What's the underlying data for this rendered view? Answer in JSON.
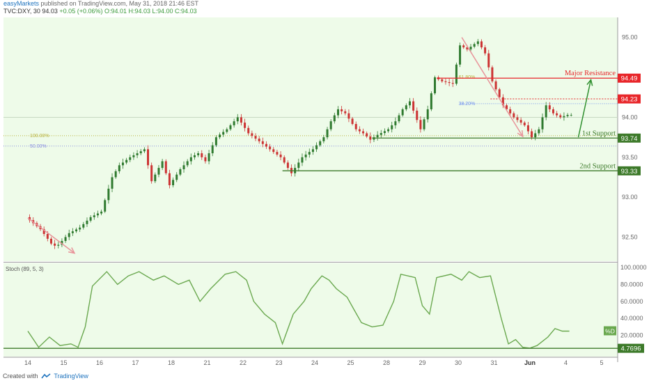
{
  "header": {
    "publisher": "easyMarkets",
    "published_text": "published on TradingView.com, May 31, 2018 21:46 EST",
    "symbol_line": "TVC:DXY, 30",
    "last_price": "94.03",
    "change": "+0.05 (+0.06%)",
    "ohlc": "O:94.01 H:94.03 L:94.00 C:94.03"
  },
  "footer": {
    "created_with": "Created with",
    "brand": "TradingView"
  },
  "colors": {
    "chart_bg": "#eefbe9",
    "resistance": "#e8262a",
    "support": "#3d7a2a",
    "fib_100": "#b9b23c",
    "fib_50": "#8a8fe0",
    "fib_382": "#6f8ff0",
    "down_arrow": "#e8949a",
    "up_arrow": "#2f8f2f",
    "stoch_line": "#6aa84f",
    "candle_up": "#2f7a2f",
    "candle_down": "#cc3333"
  },
  "chart_data": {
    "type": "line",
    "subtype": "candlestick",
    "price_axis": {
      "range": [
        92.2,
        95.25
      ],
      "ticks": [
        "95.00",
        "94.50",
        "94.00",
        "93.50",
        "93.00",
        "92.50"
      ],
      "tick_values": [
        95.0,
        94.5,
        94.0,
        93.5,
        93.0,
        92.5
      ]
    },
    "x_axis": {
      "labels": [
        "14",
        "15",
        "16",
        "17",
        "18",
        "21",
        "22",
        "23",
        "24",
        "25",
        "28",
        "29",
        "30",
        "31",
        "Jun",
        "4",
        "5"
      ],
      "bold": [
        "Jun"
      ]
    },
    "price_path": [
      [
        0,
        92.75
      ],
      [
        0.4,
        92.6
      ],
      [
        0.7,
        92.42
      ],
      [
        0.85,
        92.38
      ],
      [
        1.2,
        92.55
      ],
      [
        1.5,
        92.62
      ],
      [
        1.8,
        92.75
      ],
      [
        2.1,
        92.82
      ],
      [
        2.4,
        93.25
      ],
      [
        2.6,
        93.4
      ],
      [
        2.9,
        93.5
      ],
      [
        3.3,
        93.6
      ],
      [
        3.5,
        93.2
      ],
      [
        3.8,
        93.45
      ],
      [
        4.0,
        93.15
      ],
      [
        4.3,
        93.35
      ],
      [
        4.6,
        93.5
      ],
      [
        4.8,
        93.55
      ],
      [
        5.0,
        93.45
      ],
      [
        5.3,
        93.75
      ],
      [
        5.6,
        93.85
      ],
      [
        5.9,
        94.0
      ],
      [
        6.2,
        93.8
      ],
      [
        6.5,
        93.7
      ],
      [
        6.8,
        93.6
      ],
      [
        7.1,
        93.5
      ],
      [
        7.4,
        93.3
      ],
      [
        7.7,
        93.5
      ],
      [
        8.0,
        93.6
      ],
      [
        8.3,
        93.75
      ],
      [
        8.5,
        93.95
      ],
      [
        8.7,
        94.1
      ],
      [
        8.9,
        94.05
      ],
      [
        9.2,
        93.85
      ],
      [
        9.4,
        93.8
      ],
      [
        9.6,
        93.72
      ],
      [
        9.8,
        93.78
      ],
      [
        10.1,
        93.85
      ],
      [
        10.3,
        93.95
      ],
      [
        10.5,
        94.1
      ],
      [
        10.7,
        94.2
      ],
      [
        11.0,
        93.85
      ],
      [
        11.2,
        94.1
      ],
      [
        11.4,
        94.5
      ],
      [
        11.6,
        94.45
      ],
      [
        11.9,
        94.42
      ],
      [
        12.1,
        94.9
      ],
      [
        12.3,
        94.85
      ],
      [
        12.6,
        94.95
      ],
      [
        12.8,
        94.8
      ],
      [
        13.0,
        94.45
      ],
      [
        13.3,
        94.15
      ],
      [
        13.6,
        94.0
      ],
      [
        13.9,
        93.9
      ],
      [
        14.1,
        93.75
      ],
      [
        14.3,
        93.85
      ],
      [
        14.5,
        94.15
      ],
      [
        14.7,
        94.05
      ],
      [
        14.9,
        94.0
      ],
      [
        15.1,
        94.03
      ]
    ],
    "stochastic": {
      "label": "Stoch (89, 5, 3)",
      "range": [
        0,
        100
      ],
      "ticks": [
        "100.0000",
        "80.0000",
        "60.0000",
        "40.0000",
        "20.0000"
      ],
      "tick_values": [
        100,
        80,
        60,
        40,
        20
      ],
      "current_label": "%D",
      "current_value": 25,
      "min_label": "4.7696",
      "min_value": 4.77,
      "values": [
        [
          0,
          25
        ],
        [
          0.3,
          6
        ],
        [
          0.6,
          18
        ],
        [
          0.9,
          8
        ],
        [
          1.2,
          10
        ],
        [
          1.4,
          6
        ],
        [
          1.6,
          30
        ],
        [
          1.8,
          78
        ],
        [
          2.2,
          95
        ],
        [
          2.5,
          80
        ],
        [
          2.8,
          90
        ],
        [
          3.1,
          95
        ],
        [
          3.5,
          85
        ],
        [
          3.8,
          90
        ],
        [
          4.2,
          80
        ],
        [
          4.5,
          85
        ],
        [
          4.8,
          60
        ],
        [
          5.1,
          75
        ],
        [
          5.5,
          92
        ],
        [
          5.8,
          95
        ],
        [
          6.1,
          85
        ],
        [
          6.3,
          60
        ],
        [
          6.6,
          45
        ],
        [
          6.9,
          35
        ],
        [
          7.1,
          10
        ],
        [
          7.4,
          45
        ],
        [
          7.7,
          60
        ],
        [
          7.9,
          75
        ],
        [
          8.2,
          90
        ],
        [
          8.4,
          85
        ],
        [
          8.6,
          75
        ],
        [
          8.9,
          65
        ],
        [
          9.1,
          50
        ],
        [
          9.3,
          35
        ],
        [
          9.6,
          30
        ],
        [
          9.9,
          32
        ],
        [
          10.2,
          60
        ],
        [
          10.4,
          92
        ],
        [
          10.8,
          88
        ],
        [
          11.0,
          55
        ],
        [
          11.2,
          45
        ],
        [
          11.4,
          88
        ],
        [
          11.8,
          92
        ],
        [
          12.1,
          85
        ],
        [
          12.3,
          95
        ],
        [
          12.6,
          88
        ],
        [
          12.9,
          90
        ],
        [
          13.2,
          40
        ],
        [
          13.4,
          10
        ],
        [
          13.6,
          15
        ],
        [
          13.8,
          6
        ],
        [
          14.0,
          5
        ],
        [
          14.2,
          8
        ],
        [
          14.5,
          18
        ],
        [
          14.7,
          28
        ],
        [
          14.9,
          25
        ],
        [
          15.1,
          25
        ]
      ]
    },
    "levels": [
      {
        "name": "Major Resistance",
        "value": 94.49,
        "label": "94.49",
        "kind": "resistance",
        "from_x": 11.4
      },
      {
        "name": "",
        "value": 94.23,
        "label": "94.23",
        "kind": "resistance-dotted",
        "from_x": 12.9
      },
      {
        "name": "1st Support",
        "value": 93.74,
        "label": "93.74",
        "kind": "support",
        "from_x": 9.6
      },
      {
        "name": "2nd Support",
        "value": 93.33,
        "label": "93.33",
        "kind": "support",
        "from_x": 7.1
      }
    ],
    "fib_levels": [
      {
        "label": "100.00%",
        "value": 93.77
      },
      {
        "label": "50.00%",
        "value": 93.64
      },
      {
        "label": "38.20%",
        "value": 94.17
      },
      {
        "label": "61.80%",
        "value": 94.5
      }
    ],
    "arrows": [
      {
        "kind": "down",
        "from": [
          0.0,
          92.74
        ],
        "to": [
          1.3,
          92.3
        ]
      },
      {
        "kind": "down",
        "from": [
          12.1,
          95.0
        ],
        "to": [
          13.8,
          93.76
        ]
      },
      {
        "kind": "up",
        "from": [
          15.35,
          93.75
        ],
        "to": [
          15.7,
          94.47
        ]
      }
    ]
  }
}
